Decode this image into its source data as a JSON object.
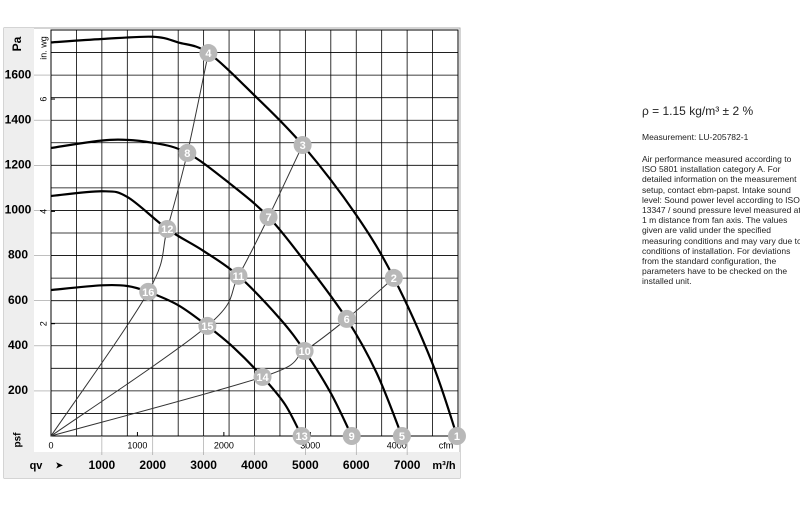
{
  "chart_data": {
    "type": "fan-curve",
    "y_label": "Pa",
    "y_label_bottom": "psf",
    "x_label": "qv",
    "x_unit": "m³/h",
    "y2_label": "in. wg",
    "x2_label": "cfm",
    "xlim": [
      0,
      8000
    ],
    "ylim": [
      0,
      1800
    ],
    "xticks": [
      1000,
      2000,
      3000,
      4000,
      5000,
      6000,
      7000
    ],
    "yticks": [
      200,
      400,
      600,
      800,
      1000,
      1200,
      1400,
      1600
    ],
    "xgrid": [
      500,
      1000,
      1500,
      2000,
      2500,
      3000,
      3500,
      4000,
      4500,
      5000,
      5500,
      6000,
      6500,
      7000,
      7500
    ],
    "ygrid": [
      100,
      200,
      300,
      400,
      500,
      600,
      700,
      800,
      900,
      1000,
      1100,
      1200,
      1300,
      1400,
      1500,
      1600,
      1700
    ],
    "x2lim": [
      0,
      4709
    ],
    "x2ticks": [
      0,
      1000,
      2000,
      3000,
      4000
    ],
    "y2lim": [
      0,
      7.23
    ],
    "y2ticks": [
      2,
      4,
      6
    ],
    "fan_curves": [
      {
        "color": "#000000",
        "x": [
          0,
          1000,
          2000,
          2500,
          3094,
          4000,
          4946,
          6000,
          6739,
          7500,
          7980
        ],
        "y": [
          1745,
          1760,
          1770,
          1745,
          1698,
          1510,
          1290,
          980,
          701,
          320,
          0
        ]
      },
      {
        "color": "#000000",
        "x": [
          0,
          1160,
          2000,
          2680,
          3500,
          4276,
          5000,
          5813,
          6400,
          6897
        ],
        "y": [
          1277,
          1313,
          1300,
          1255,
          1122,
          971,
          770,
          519,
          280,
          0
        ]
      },
      {
        "color": "#000000",
        "x": [
          0,
          1000,
          1500,
          2286,
          3000,
          3685,
          4500,
          4985,
          5500,
          5911
        ],
        "y": [
          1064,
          1085,
          1060,
          918,
          820,
          710,
          520,
          377,
          190,
          0
        ]
      },
      {
        "color": "#000000",
        "x": [
          0,
          1000,
          1500,
          1911,
          2500,
          3074,
          3600,
          4158,
          4600,
          4926
        ],
        "y": [
          647,
          668,
          665,
          639,
          580,
          488,
          390,
          262,
          140,
          0
        ]
      }
    ],
    "system_curves": [
      {
        "color": "#333333",
        "x": [
          0,
          1911,
          2286,
          2680,
          3094
        ],
        "y": [
          0,
          639,
          918,
          1255,
          1698
        ]
      },
      {
        "color": "#333333",
        "x": [
          0,
          3074,
          3685,
          4276,
          4946
        ],
        "y": [
          0,
          488,
          710,
          971,
          1290
        ]
      },
      {
        "color": "#333333",
        "x": [
          0,
          4158,
          4985,
          5813,
          6739
        ],
        "y": [
          0,
          262,
          377,
          519,
          701
        ]
      }
    ],
    "points": {
      "color": "#b8b8b8",
      "labels": [
        "1",
        "2",
        "3",
        "4",
        "5",
        "6",
        "7",
        "8",
        "9",
        "10",
        "11",
        "12",
        "13",
        "14",
        "15",
        "16"
      ],
      "x": [
        7980,
        6739,
        4946,
        3094,
        6897,
        5813,
        4276,
        2680,
        5911,
        4985,
        3685,
        2286,
        4926,
        4158,
        3074,
        1911
      ],
      "y": [
        0,
        701,
        1290,
        1698,
        0,
        519,
        971,
        1255,
        0,
        377,
        710,
        918,
        0,
        262,
        488,
        639
      ]
    }
  },
  "notes": {
    "density": "ρ = 1.15 kg/m³ ± 2 %",
    "measurement": "Measurement: LU-205782-1",
    "description": "Air performance measured according to ISO 5801 installation category A. For detailed information on the measurement setup, contact ebm-papst. Intake sound level: Sound power level according to ISO 13347 / sound pressure level measured at 1 m distance from fan axis. The values given are valid under the specified measuring conditions and may vary due to conditions of installation. For deviations from the standard configuration, the parameters have to be checked on the installed unit."
  }
}
